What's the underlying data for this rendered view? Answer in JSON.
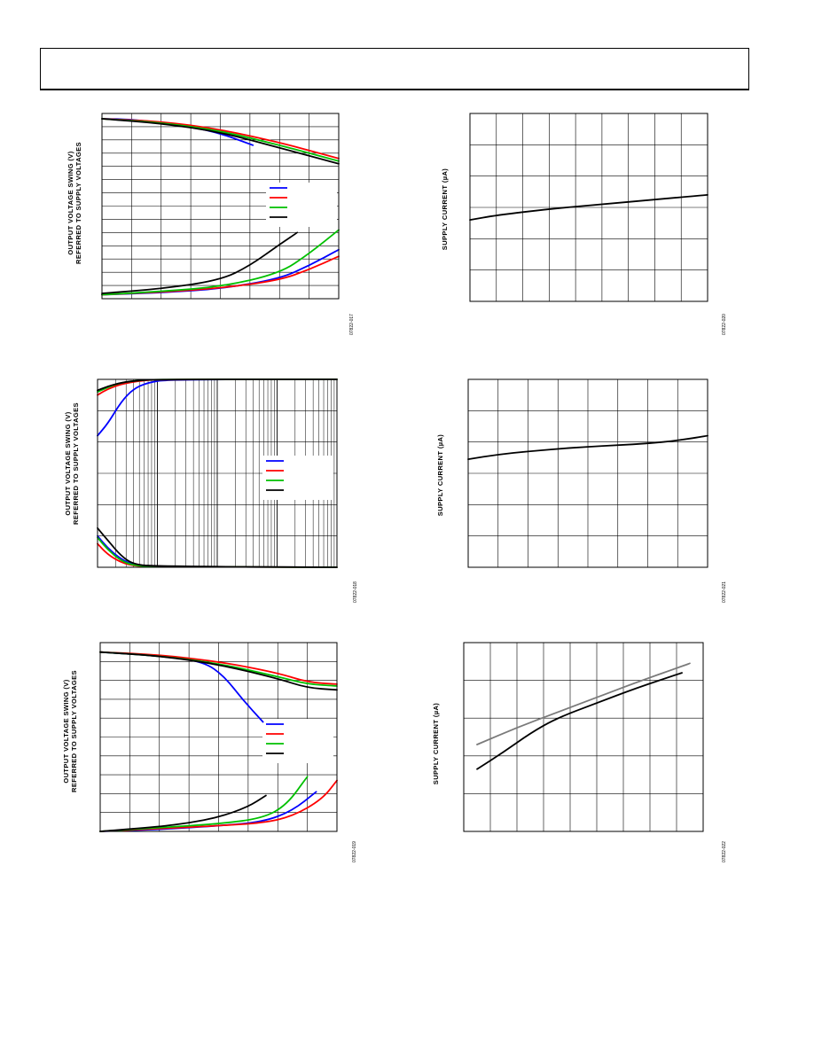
{
  "chart_data": [
    {
      "id": "fig17",
      "type": "line",
      "ylabel": "OUTPUT VOLTAGE SWING (V)\nREFERRED TO SUPPLY VOLTAGES",
      "figure_id": "07822-017",
      "x_divisions": 8,
      "y_divisions": 14,
      "xlim": [
        0,
        8
      ],
      "ylim": [
        0,
        14
      ],
      "legend": "right-middle",
      "series": [
        {
          "color": "#0000ff",
          "points": [
            [
              0,
              13.6
            ],
            [
              1,
              13.55
            ],
            [
              2,
              13.3
            ],
            [
              3,
              13.0
            ],
            [
              4,
              12.5
            ],
            [
              5.1,
              11.6
            ]
          ]
        },
        {
          "color": "#ff0000",
          "points": [
            [
              0,
              13.6
            ],
            [
              2,
              13.4
            ],
            [
              4,
              12.8
            ],
            [
              6,
              11.8
            ],
            [
              7,
              11.2
            ],
            [
              8,
              10.6
            ]
          ]
        },
        {
          "color": "#00c000",
          "points": [
            [
              0,
              13.6
            ],
            [
              2,
              13.3
            ],
            [
              4,
              12.7
            ],
            [
              6,
              11.6
            ],
            [
              7,
              11.0
            ],
            [
              8,
              10.4
            ]
          ]
        },
        {
          "color": "#000000",
          "points": [
            [
              0,
              13.6
            ],
            [
              2,
              13.25
            ],
            [
              4,
              12.6
            ],
            [
              6,
              11.4
            ],
            [
              7,
              10.8
            ],
            [
              8,
              10.2
            ]
          ]
        },
        {
          "color": "#0000ff",
          "points": [
            [
              0,
              0.3
            ],
            [
              2,
              0.45
            ],
            [
              4,
              0.75
            ],
            [
              6,
              1.5
            ],
            [
              7,
              2.5
            ],
            [
              8,
              3.7
            ]
          ]
        },
        {
          "color": "#ff0000",
          "points": [
            [
              0,
              0.3
            ],
            [
              2,
              0.5
            ],
            [
              4,
              0.8
            ],
            [
              6,
              1.4
            ],
            [
              7,
              2.2
            ],
            [
              8,
              3.2
            ]
          ]
        },
        {
          "color": "#00c000",
          "points": [
            [
              0,
              0.3
            ],
            [
              2,
              0.55
            ],
            [
              4,
              0.9
            ],
            [
              6,
              1.9
            ],
            [
              7,
              3.4
            ],
            [
              8,
              5.2
            ]
          ]
        },
        {
          "color": "#000000",
          "points": [
            [
              0,
              0.4
            ],
            [
              2,
              0.75
            ],
            [
              4,
              1.4
            ],
            [
              5,
              2.5
            ],
            [
              6,
              4.1
            ],
            [
              6.6,
              5.0
            ]
          ]
        }
      ]
    },
    {
      "id": "fig18",
      "type": "line",
      "ylabel": "OUTPUT VOLTAGE SWING (V)\nREFERRED TO SUPPLY VOLTAGES",
      "figure_id": "07822-018",
      "x_scale": "log",
      "xlim": [
        1,
        10000
      ],
      "y_divisions": 6,
      "ylim": [
        0,
        6
      ],
      "legend": "right-middle",
      "series": [
        {
          "color": "#0000ff",
          "points": [
            [
              1,
              4.2
            ],
            [
              1.5,
              4.6
            ],
            [
              2.5,
              5.3
            ],
            [
              4,
              5.7
            ],
            [
              7,
              5.9
            ],
            [
              15,
              6
            ],
            [
              10000,
              6
            ]
          ]
        },
        {
          "color": "#ff0000",
          "points": [
            [
              1,
              5.5
            ],
            [
              1.5,
              5.7
            ],
            [
              2.5,
              5.85
            ],
            [
              5,
              5.95
            ],
            [
              10,
              6
            ],
            [
              10000,
              6
            ]
          ]
        },
        {
          "color": "#00c000",
          "points": [
            [
              1,
              5.6
            ],
            [
              1.5,
              5.75
            ],
            [
              2.5,
              5.9
            ],
            [
              5,
              5.97
            ],
            [
              10,
              6
            ],
            [
              10000,
              6
            ]
          ]
        },
        {
          "color": "#000000",
          "points": [
            [
              1,
              5.65
            ],
            [
              1.5,
              5.78
            ],
            [
              2.5,
              5.9
            ],
            [
              5,
              5.97
            ],
            [
              10,
              6
            ],
            [
              10000,
              6
            ]
          ]
        },
        {
          "color": "#0000ff",
          "points": [
            [
              1,
              1.0
            ],
            [
              1.5,
              0.6
            ],
            [
              2.5,
              0.25
            ],
            [
              4,
              0.07
            ],
            [
              8,
              0.02
            ],
            [
              10000,
              0
            ]
          ]
        },
        {
          "color": "#ff0000",
          "points": [
            [
              1,
              0.75
            ],
            [
              1.5,
              0.4
            ],
            [
              2.5,
              0.15
            ],
            [
              4,
              0.05
            ],
            [
              8,
              0.02
            ],
            [
              10000,
              0
            ]
          ]
        },
        {
          "color": "#00c000",
          "points": [
            [
              1,
              0.95
            ],
            [
              1.5,
              0.55
            ],
            [
              2.5,
              0.2
            ],
            [
              4,
              0.06
            ],
            [
              8,
              0.02
            ],
            [
              10000,
              0
            ]
          ]
        },
        {
          "color": "#000000",
          "points": [
            [
              1,
              1.25
            ],
            [
              1.5,
              0.85
            ],
            [
              2.5,
              0.35
            ],
            [
              4,
              0.1
            ],
            [
              8,
              0.03
            ],
            [
              10000,
              0
            ]
          ]
        }
      ]
    },
    {
      "id": "fig19",
      "type": "line",
      "ylabel": "OUTPUT VOLTAGE SWING (V)\nREFERRED TO SUPPLY VOLTAGES",
      "figure_id": "07822-019",
      "x_divisions": 8,
      "y_divisions": 10,
      "xlim": [
        0,
        8
      ],
      "ylim": [
        0,
        10
      ],
      "legend": "right-middle",
      "series": [
        {
          "color": "#0000ff",
          "points": [
            [
              0,
              9.5
            ],
            [
              2,
              9.3
            ],
            [
              3.5,
              9.0
            ],
            [
              4.2,
              8.2
            ],
            [
              4.8,
              7.0
            ],
            [
              5.5,
              5.8
            ]
          ]
        },
        {
          "color": "#ff0000",
          "points": [
            [
              0,
              9.5
            ],
            [
              2,
              9.35
            ],
            [
              4,
              9.0
            ],
            [
              6,
              8.4
            ],
            [
              7,
              7.9
            ],
            [
              8,
              7.8
            ]
          ]
        },
        {
          "color": "#00c000",
          "points": [
            [
              0,
              9.5
            ],
            [
              2,
              9.3
            ],
            [
              4,
              8.9
            ],
            [
              6,
              8.2
            ],
            [
              7,
              7.8
            ],
            [
              8,
              7.7
            ]
          ]
        },
        {
          "color": "#000000",
          "points": [
            [
              0,
              9.5
            ],
            [
              2,
              9.3
            ],
            [
              4,
              8.85
            ],
            [
              6,
              8.1
            ],
            [
              7,
              7.6
            ],
            [
              8,
              7.5
            ]
          ]
        },
        {
          "color": "#0000ff",
          "points": [
            [
              0,
              0
            ],
            [
              2,
              0.1
            ],
            [
              4,
              0.3
            ],
            [
              5.5,
              0.5
            ],
            [
              6.5,
              1.1
            ],
            [
              7.3,
              2.1
            ]
          ]
        },
        {
          "color": "#ff0000",
          "points": [
            [
              0,
              0
            ],
            [
              2,
              0.15
            ],
            [
              4,
              0.3
            ],
            [
              5.5,
              0.45
            ],
            [
              6.5,
              0.8
            ],
            [
              7.5,
              1.7
            ],
            [
              8,
              2.7
            ]
          ]
        },
        {
          "color": "#00c000",
          "points": [
            [
              0,
              0
            ],
            [
              2,
              0.2
            ],
            [
              4,
              0.4
            ],
            [
              5.5,
              0.7
            ],
            [
              6.3,
              1.4
            ],
            [
              7,
              2.9
            ]
          ]
        },
        {
          "color": "#000000",
          "points": [
            [
              0,
              0
            ],
            [
              2,
              0.25
            ],
            [
              3,
              0.45
            ],
            [
              4,
              0.75
            ],
            [
              5,
              1.3
            ],
            [
              5.6,
              1.9
            ]
          ]
        }
      ]
    },
    {
      "id": "fig20",
      "type": "line",
      "ylabel": "SUPPLY CURRENT (µA)",
      "figure_id": "07822-020",
      "x_divisions": 9,
      "y_divisions": 6,
      "xlim": [
        0,
        9
      ],
      "ylim": [
        0,
        6
      ],
      "series": [
        {
          "color": "#000000",
          "points": [
            [
              0,
              2.6
            ],
            [
              1,
              2.75
            ],
            [
              3,
              2.95
            ],
            [
              5,
              3.1
            ],
            [
              7,
              3.25
            ],
            [
              9,
              3.4
            ]
          ]
        }
      ]
    },
    {
      "id": "fig21",
      "type": "line",
      "ylabel": "SUPPLY CURRENT (µA)",
      "figure_id": "07822-021",
      "x_divisions": 8,
      "y_divisions": 6,
      "xlim": [
        0,
        8
      ],
      "ylim": [
        0,
        6
      ],
      "series": [
        {
          "color": "#000000",
          "points": [
            [
              0,
              3.45
            ],
            [
              1,
              3.6
            ],
            [
              2,
              3.7
            ],
            [
              3,
              3.78
            ],
            [
              4,
              3.85
            ],
            [
              5,
              3.9
            ],
            [
              6,
              3.95
            ],
            [
              7,
              4.05
            ],
            [
              8,
              4.2
            ]
          ]
        }
      ]
    },
    {
      "id": "fig22",
      "type": "line",
      "ylabel": "SUPPLY CURRENT (µA)",
      "figure_id": "07822-022",
      "x_divisions": 9,
      "y_divisions": 5,
      "xlim": [
        0,
        9
      ],
      "ylim": [
        0,
        5
      ],
      "series": [
        {
          "color": "#7a7a7a",
          "points": [
            [
              0.5,
              2.3
            ],
            [
              2,
              2.75
            ],
            [
              3.5,
              3.15
            ],
            [
              5,
              3.55
            ],
            [
              6.5,
              3.95
            ],
            [
              8.5,
              4.45
            ]
          ]
        },
        {
          "color": "#000000",
          "points": [
            [
              0.5,
              1.65
            ],
            [
              1.5,
              2.1
            ],
            [
              2.5,
              2.6
            ],
            [
              3.5,
              3.0
            ],
            [
              5,
              3.4
            ],
            [
              6.5,
              3.8
            ],
            [
              8.2,
              4.2
            ]
          ]
        }
      ]
    }
  ]
}
